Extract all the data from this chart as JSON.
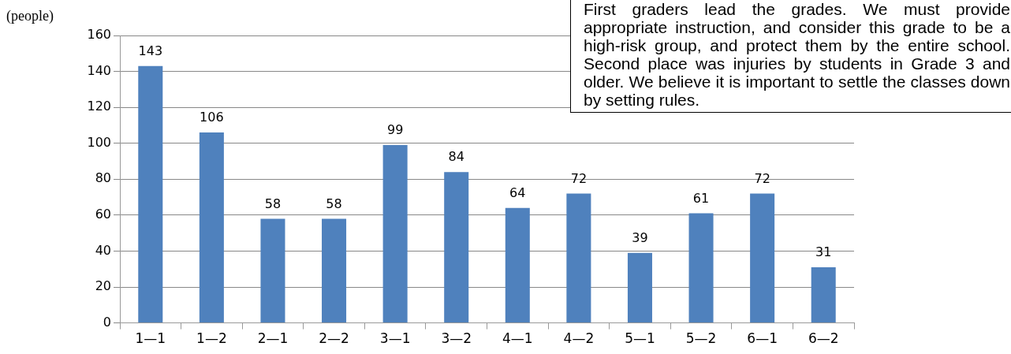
{
  "chart_data": {
    "type": "bar",
    "ylabel": "(people)",
    "categories": [
      "1—1",
      "1—2",
      "2—1",
      "2—2",
      "3—1",
      "3—2",
      "4—1",
      "4—2",
      "5—1",
      "5—2",
      "6—1",
      "6—2"
    ],
    "values": [
      143,
      106,
      58,
      58,
      99,
      84,
      64,
      72,
      39,
      61,
      72,
      31
    ],
    "color": "#4f81bd",
    "ylim": [
      0,
      160
    ],
    "yticks": [
      0,
      20,
      40,
      60,
      80,
      100,
      120,
      140,
      160
    ],
    "grid": "y",
    "legend": false,
    "data_labels": true,
    "annotations": [
      "First graders lead the grades. We must provide appropriate instruction, and consider this grade to be a high-risk group, and protect them by the entire school. Second place was injuries by students in Grade 3 and older. We believe it is important to settle the classes down by setting rules."
    ]
  }
}
